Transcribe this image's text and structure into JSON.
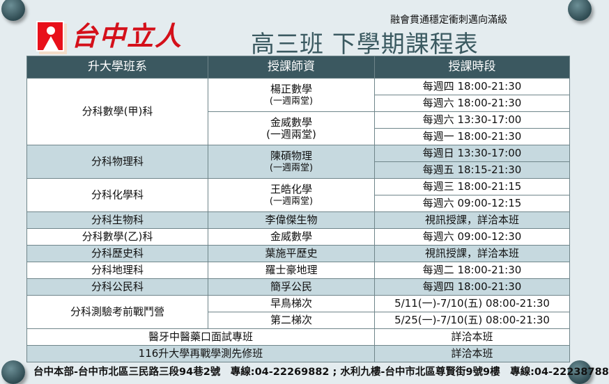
{
  "brand": "台中立人",
  "slogan": "融會貫通穩定衝刺邁向滿級",
  "title": "高三班 下學期課程表",
  "headers": [
    "升大學班系",
    "授課師資",
    "授課時段"
  ],
  "math_a": {
    "subject": "分科數學(甲)科",
    "t1": "楊正數學",
    "t1n": "(一週兩堂)",
    "t2": "金威數學",
    "t2n": "(一週兩堂)",
    "s": [
      "每週四 18:00-21:30",
      "每週六 18:00-21:30",
      "每週六 13:30-17:00",
      "每週一 18:00-21:30"
    ]
  },
  "physics": {
    "subject": "分科物理科",
    "t": "陳碩物理",
    "n": "(一週兩堂)",
    "s": [
      "每週日 13:30-17:00",
      "每週五 18:15-21:30"
    ]
  },
  "chem": {
    "subject": "分科化學科",
    "t": "王皓化學",
    "n": "(一週兩堂)",
    "s": [
      "每週三 18:00-21:15",
      "每週六 09:00-12:15"
    ]
  },
  "rows": [
    {
      "subject": "分科生物科",
      "t": "李偉傑生物",
      "s": "視訊授課，詳洽本班"
    },
    {
      "subject": "分科數學(乙)科",
      "t": "金威數學",
      "s": "每週六 09:00-12:30"
    },
    {
      "subject": "分科歷史科",
      "t": "葉施平歷史",
      "s": "視訊授課，詳洽本班"
    },
    {
      "subject": "分科地理科",
      "t": "羅士豪地理",
      "s": "每週二 18:00-21:30"
    },
    {
      "subject": "分科公民科",
      "t": "簡孚公民",
      "s": "每週四 18:00-21:30"
    }
  ],
  "exam": {
    "subject": "分科測驗考前戰鬥營",
    "t1": "早鳥梯次",
    "s1": "5/11(一)-7/10(五) 08:00-21:30",
    "t2": "第二梯次",
    "s2": "5/25(一)-7/10(五) 08:00-21:30"
  },
  "special": [
    {
      "subject": "醫牙中醫藥口面試專班",
      "s": "詳洽本班"
    },
    {
      "subject": "116升大學再戰學測先修班",
      "s": "詳洽本班"
    }
  ],
  "footer": "台中本部-台中市北區三民路三段94巷2號　專線:04-22269882 ; 水利九樓-台中市北區尊賢街9號9樓　專線:04-22238788"
}
